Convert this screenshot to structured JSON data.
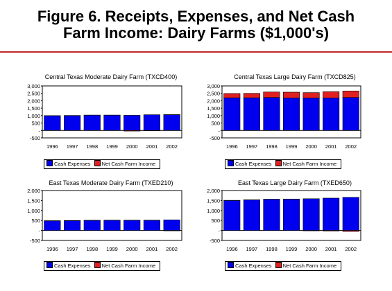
{
  "title_line1": "Figure 6.  Receipts, Expenses, and Net Cash",
  "title_line2": "Farm Income:  Dairy Farms ($1,000's)",
  "colors": {
    "expenses": "#0000ee",
    "net_income": "#e02020",
    "rule": "#c0282d"
  },
  "chart_data": [
    {
      "type": "bar",
      "stacked": true,
      "title": "Central Texas Moderate Dairy Farm (TXCD400)",
      "categories": [
        "1996",
        "1997",
        "1998",
        "1999",
        "2000",
        "2001",
        "2002"
      ],
      "series": [
        {
          "name": "Cash Expenses",
          "values": [
            990,
            1000,
            1030,
            1030,
            1020,
            1060,
            1060
          ]
        },
        {
          "name": "Net Cash Farm Income",
          "values": [
            10,
            10,
            5,
            5,
            -40,
            -20,
            10
          ]
        }
      ],
      "ylim": [
        -500,
        3000
      ],
      "yticks": [
        "-500",
        "-",
        "500",
        "1,000",
        "1,500",
        "2,000",
        "2,500",
        "3,000"
      ],
      "legend": "bottom-left"
    },
    {
      "type": "bar",
      "stacked": true,
      "title": "Central Texas Large Dairy Farm (TXCD825)",
      "categories": [
        "1996",
        "1997",
        "1998",
        "1999",
        "2000",
        "2001",
        "2002"
      ],
      "series": [
        {
          "name": "Cash Expenses",
          "values": [
            2200,
            2200,
            2220,
            2190,
            2190,
            2190,
            2220
          ]
        },
        {
          "name": "Net Cash Farm Income",
          "values": [
            290,
            300,
            370,
            390,
            360,
            420,
            440
          ]
        }
      ],
      "ylim": [
        -500,
        3000
      ],
      "yticks": [
        "-500",
        "-",
        "500",
        "1,000",
        "1,500",
        "2,000",
        "2,500",
        "3,000"
      ],
      "legend": "bottom-left"
    },
    {
      "type": "bar",
      "stacked": true,
      "title": "East Texas Moderate Dairy Farm (TXED210)",
      "categories": [
        "1996",
        "1997",
        "1998",
        "1999",
        "2000",
        "2001",
        "2002"
      ],
      "series": [
        {
          "name": "Cash Expenses",
          "values": [
            480,
            490,
            500,
            510,
            510,
            510,
            530
          ]
        },
        {
          "name": "Net Cash Farm Income",
          "values": [
            10,
            10,
            10,
            5,
            5,
            5,
            -20
          ]
        }
      ],
      "ylim": [
        -500,
        2000
      ],
      "yticks": [
        "-500",
        "-",
        "500",
        "1,000",
        "1,500",
        "2,000"
      ],
      "legend": "bottom-left"
    },
    {
      "type": "bar",
      "stacked": true,
      "title": "East Texas Large Dairy Farm (TXED650)",
      "categories": [
        "1996",
        "1997",
        "1998",
        "1999",
        "2000",
        "2001",
        "2002"
      ],
      "series": [
        {
          "name": "Cash Expenses",
          "values": [
            1500,
            1530,
            1560,
            1570,
            1590,
            1620,
            1660
          ]
        },
        {
          "name": "Net Cash Farm Income",
          "values": [
            10,
            10,
            5,
            5,
            -20,
            -30,
            -50
          ]
        }
      ],
      "ylim": [
        -500,
        2000
      ],
      "yticks": [
        "-500",
        "-",
        "500",
        "1,000",
        "1,500",
        "2,000"
      ],
      "legend": "bottom-left"
    }
  ]
}
